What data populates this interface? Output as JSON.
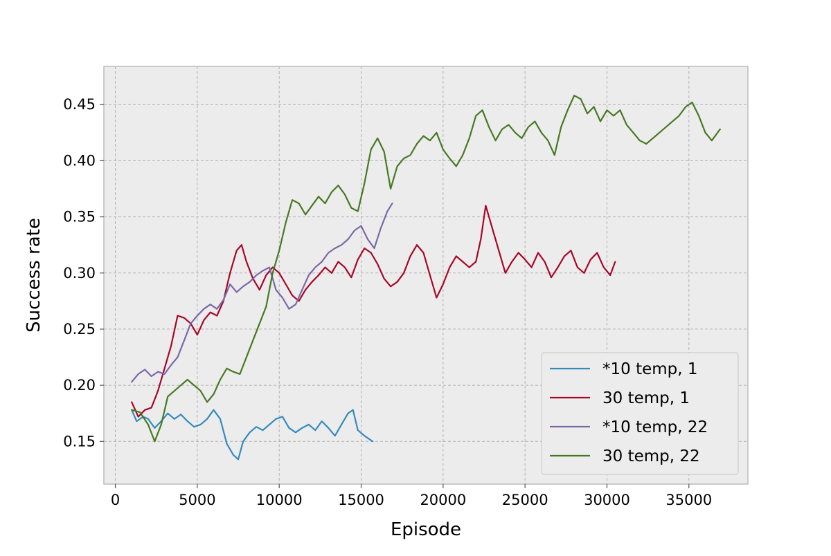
{
  "chart_data": {
    "type": "line",
    "title": "",
    "xlabel": "Episode",
    "ylabel": "Success rate",
    "xlim": [
      -700,
      38600
    ],
    "ylim": [
      0.112,
      0.484
    ],
    "xticks": [
      0,
      5000,
      10000,
      15000,
      20000,
      25000,
      30000,
      35000
    ],
    "xtick_labels": [
      "0",
      "5000",
      "10000",
      "15000",
      "20000",
      "25000",
      "30000",
      "35000"
    ],
    "yticks": [
      0.15,
      0.2,
      0.25,
      0.3,
      0.35,
      0.4,
      0.45
    ],
    "ytick_labels": [
      "0.15",
      "0.20",
      "0.25",
      "0.30",
      "0.35",
      "0.40",
      "0.45"
    ],
    "grid": true,
    "legend_position": "lower-right",
    "background": "#ececec",
    "series": [
      {
        "name": "*10 temp, 1",
        "color": "#348abd",
        "x": [
          1000,
          1300,
          1700,
          2000,
          2400,
          2800,
          3200,
          3600,
          4000,
          4400,
          4800,
          5200,
          5600,
          6000,
          6400,
          6800,
          7200,
          7500,
          7800,
          8200,
          8600,
          9000,
          9400,
          9800,
          10200,
          10600,
          11000,
          11400,
          11800,
          12200,
          12600,
          13000,
          13400,
          13800,
          14200,
          14500,
          14800,
          15200,
          15700
        ],
        "y": [
          0.178,
          0.168,
          0.172,
          0.17,
          0.162,
          0.168,
          0.175,
          0.17,
          0.174,
          0.168,
          0.163,
          0.165,
          0.17,
          0.178,
          0.17,
          0.148,
          0.138,
          0.134,
          0.15,
          0.158,
          0.163,
          0.16,
          0.165,
          0.17,
          0.172,
          0.162,
          0.158,
          0.162,
          0.165,
          0.16,
          0.168,
          0.162,
          0.155,
          0.165,
          0.175,
          0.178,
          0.16,
          0.155,
          0.15
        ]
      },
      {
        "name": "30 temp, 1",
        "color": "#a60628",
        "x": [
          1000,
          1400,
          1800,
          2200,
          2600,
          3000,
          3400,
          3800,
          4200,
          4600,
          5000,
          5400,
          5800,
          6200,
          6600,
          7000,
          7400,
          7700,
          8000,
          8400,
          8800,
          9200,
          9600,
          10000,
          10400,
          10800,
          11200,
          11600,
          12000,
          12400,
          12800,
          13200,
          13600,
          14000,
          14400,
          14800,
          15200,
          15600,
          16000,
          16400,
          16800,
          17200,
          17600,
          18000,
          18400,
          18800,
          19200,
          19600,
          20000,
          20400,
          20800,
          21200,
          21600,
          22000,
          22300,
          22600,
          23000,
          23400,
          23800,
          24200,
          24600,
          25000,
          25400,
          25800,
          26200,
          26600,
          27000,
          27400,
          27800,
          28200,
          28600,
          29000,
          29400,
          29800,
          30200,
          30500
        ],
        "y": [
          0.185,
          0.172,
          0.178,
          0.18,
          0.195,
          0.215,
          0.235,
          0.262,
          0.26,
          0.255,
          0.245,
          0.258,
          0.265,
          0.262,
          0.275,
          0.3,
          0.32,
          0.325,
          0.31,
          0.295,
          0.285,
          0.298,
          0.305,
          0.3,
          0.29,
          0.28,
          0.275,
          0.285,
          0.292,
          0.298,
          0.305,
          0.3,
          0.31,
          0.305,
          0.296,
          0.312,
          0.322,
          0.318,
          0.308,
          0.295,
          0.288,
          0.292,
          0.3,
          0.315,
          0.325,
          0.318,
          0.298,
          0.278,
          0.29,
          0.305,
          0.315,
          0.31,
          0.305,
          0.31,
          0.33,
          0.36,
          0.34,
          0.32,
          0.3,
          0.31,
          0.318,
          0.312,
          0.305,
          0.318,
          0.31,
          0.296,
          0.305,
          0.315,
          0.32,
          0.305,
          0.3,
          0.312,
          0.318,
          0.305,
          0.298,
          0.31
        ]
      },
      {
        "name": "*10 temp, 22",
        "color": "#7a68a6",
        "x": [
          1000,
          1400,
          1800,
          2200,
          2600,
          3000,
          3400,
          3800,
          4200,
          4600,
          5000,
          5400,
          5800,
          6200,
          6600,
          7000,
          7400,
          7800,
          8200,
          8600,
          9000,
          9400,
          9800,
          10200,
          10600,
          11000,
          11400,
          11800,
          12200,
          12600,
          13000,
          13400,
          13800,
          14200,
          14600,
          15000,
          15400,
          15800,
          16200,
          16600,
          16900
        ],
        "y": [
          0.203,
          0.21,
          0.214,
          0.208,
          0.212,
          0.21,
          0.218,
          0.225,
          0.24,
          0.255,
          0.262,
          0.268,
          0.272,
          0.268,
          0.276,
          0.29,
          0.283,
          0.288,
          0.292,
          0.298,
          0.302,
          0.305,
          0.285,
          0.278,
          0.268,
          0.272,
          0.285,
          0.298,
          0.305,
          0.31,
          0.318,
          0.322,
          0.325,
          0.33,
          0.338,
          0.342,
          0.33,
          0.322,
          0.34,
          0.355,
          0.362
        ]
      },
      {
        "name": "30 temp, 22",
        "color": "#467821",
        "x": [
          1000,
          1500,
          2000,
          2400,
          2800,
          3200,
          3600,
          4000,
          4400,
          4800,
          5200,
          5600,
          6000,
          6400,
          6800,
          7200,
          7600,
          8000,
          8400,
          8800,
          9200,
          9600,
          10000,
          10400,
          10800,
          11200,
          11600,
          12000,
          12400,
          12800,
          13200,
          13600,
          14000,
          14400,
          14800,
          15200,
          15600,
          16000,
          16400,
          16800,
          17200,
          17600,
          18000,
          18400,
          18800,
          19200,
          19600,
          20000,
          20400,
          20800,
          21200,
          21600,
          22000,
          22400,
          22800,
          23200,
          23600,
          24000,
          24400,
          24800,
          25200,
          25600,
          26000,
          26400,
          26800,
          27200,
          27600,
          28000,
          28400,
          28800,
          29200,
          29600,
          30000,
          30400,
          30800,
          31200,
          31600,
          32000,
          32400,
          32800,
          33200,
          33600,
          34000,
          34400,
          34800,
          35200,
          35600,
          36000,
          36400,
          36900
        ],
        "y": [
          0.178,
          0.176,
          0.165,
          0.15,
          0.165,
          0.19,
          0.195,
          0.2,
          0.205,
          0.2,
          0.195,
          0.185,
          0.192,
          0.205,
          0.215,
          0.212,
          0.21,
          0.225,
          0.24,
          0.255,
          0.27,
          0.3,
          0.32,
          0.345,
          0.365,
          0.362,
          0.352,
          0.36,
          0.368,
          0.362,
          0.372,
          0.378,
          0.37,
          0.358,
          0.355,
          0.38,
          0.41,
          0.42,
          0.408,
          0.375,
          0.395,
          0.402,
          0.405,
          0.415,
          0.422,
          0.418,
          0.425,
          0.41,
          0.402,
          0.395,
          0.405,
          0.42,
          0.44,
          0.445,
          0.43,
          0.418,
          0.428,
          0.432,
          0.425,
          0.42,
          0.43,
          0.435,
          0.425,
          0.418,
          0.405,
          0.43,
          0.445,
          0.458,
          0.455,
          0.442,
          0.448,
          0.435,
          0.445,
          0.44,
          0.445,
          0.432,
          0.425,
          0.418,
          0.415,
          0.42,
          0.425,
          0.43,
          0.435,
          0.44,
          0.448,
          0.452,
          0.44,
          0.425,
          0.418,
          0.428
        ]
      }
    ]
  }
}
